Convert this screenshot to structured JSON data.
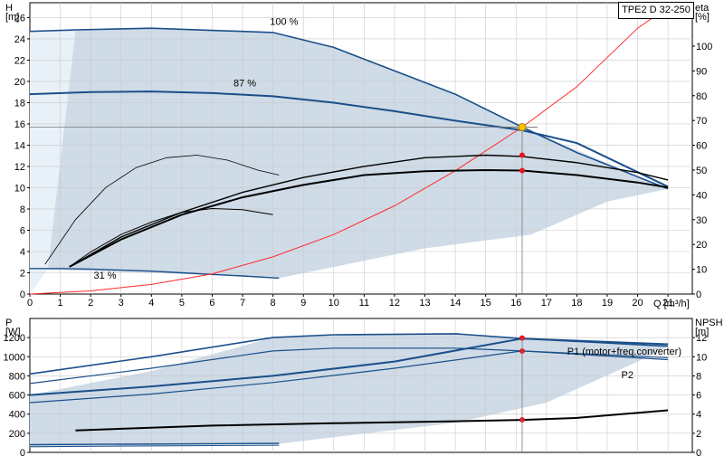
{
  "header": {
    "model": "TPE2 D 32-250"
  },
  "chart_data": [
    {
      "type": "line",
      "name": "head",
      "ylabel": "H",
      "yunit": "[m]",
      "y2label": "eta",
      "y2unit": "[%]",
      "xlabel": "Q",
      "xunit": "[m³/h]",
      "xlim": [
        0,
        21.8
      ],
      "ylim": [
        0,
        27.4
      ],
      "y2lim": [
        0,
        117.5
      ],
      "xticks": [
        "0",
        "1",
        "2",
        "3",
        "4",
        "5",
        "6",
        "7",
        "8",
        "9",
        "10",
        "11",
        "12",
        "13",
        "14",
        "15",
        "16",
        "17",
        "18",
        "19",
        "20",
        "21"
      ],
      "yticks": [
        "0",
        "2",
        "4",
        "6",
        "8",
        "10",
        "12",
        "14",
        "16",
        "18",
        "20",
        "22",
        "24",
        "26"
      ],
      "y2ticks": [
        "0",
        "10",
        "20",
        "30",
        "40",
        "50",
        "60",
        "70",
        "80",
        "90",
        "100"
      ],
      "annotations": [
        "100 %",
        "87 %",
        "31 %"
      ],
      "duty_point": {
        "q": 16.2,
        "h": 15.7
      },
      "series": [
        {
          "name": "100 %",
          "axis": "left",
          "x": [
            0,
            1.5,
            4,
            8,
            10,
            12,
            14,
            16.2,
            18,
            21
          ],
          "y": [
            24.7,
            24.85,
            25,
            24.6,
            23.2,
            21,
            18.8,
            15.7,
            13.3,
            9.9
          ]
        },
        {
          "name": "87 %",
          "axis": "left",
          "x": [
            0,
            2,
            4,
            6,
            8,
            10,
            12,
            14,
            16.2,
            18,
            21
          ],
          "y": [
            18.8,
            19,
            19.05,
            18.9,
            18.6,
            18,
            17.2,
            16.3,
            15.4,
            14.2,
            10.1
          ]
        },
        {
          "name": "31 %",
          "axis": "left",
          "x": [
            0,
            1,
            2,
            3,
            4,
            5,
            6,
            7,
            8.2
          ],
          "y": [
            2.4,
            2.4,
            2.35,
            2.25,
            2.15,
            2.0,
            1.85,
            1.7,
            1.5
          ]
        },
        {
          "name": "",
          "axis": "left",
          "x": [
            0,
            2,
            4,
            6,
            8,
            10,
            12,
            14,
            16.2,
            18,
            20,
            21
          ],
          "y": [
            0,
            0.3,
            0.9,
            1.9,
            3.5,
            5.6,
            8.3,
            11.6,
            15.7,
            19.5,
            25,
            27
          ]
        },
        {
          "name": "",
          "axis": "left",
          "x": [
            15.7,
            16.2,
            16.7
          ],
          "y": [
            15.7,
            15.7,
            15.7
          ]
        }
      ],
      "efficiency": [
        {
          "name": "",
          "x": [
            0.5,
            1.5,
            2.5,
            3.5,
            4.5,
            5.5,
            6.5,
            7.5,
            8.2
          ],
          "y": [
            12,
            30,
            43,
            51,
            55,
            56,
            54,
            50,
            48
          ]
        },
        {
          "name": "",
          "x": [
            1.3,
            3,
            5,
            7,
            9,
            11,
            13,
            15,
            16.2,
            18,
            20,
            21
          ],
          "y": [
            11,
            23,
            33,
            41,
            47,
            51.5,
            55,
            56,
            55.5,
            53,
            49,
            46
          ]
        },
        {
          "name": "",
          "x": [
            1.3,
            3,
            5,
            7,
            9,
            11,
            13,
            15,
            16.2,
            18,
            20,
            21
          ],
          "y": [
            11,
            22,
            32,
            39,
            44,
            48,
            49.5,
            50,
            49.8,
            48,
            45,
            43
          ]
        },
        {
          "name": "",
          "x": [
            1.3,
            2,
            3,
            4,
            5,
            6,
            7,
            8
          ],
          "y": [
            11,
            17,
            24,
            29,
            33,
            34.5,
            34,
            32
          ]
        }
      ],
      "marked_points": [
        {
          "q": 16.2,
          "eta": 56
        },
        {
          "q": 16.2,
          "eta": 49.8
        }
      ]
    },
    {
      "type": "line",
      "name": "power",
      "ylabel": "P",
      "yunit": "[W]",
      "y2label": "NPSH",
      "y2unit": "[m]",
      "xlim": [
        0,
        21.8
      ],
      "ylim": [
        0,
        1400
      ],
      "y2lim": [
        0,
        14
      ],
      "yticks": [
        "0",
        "200",
        "400",
        "600",
        "800",
        "1000",
        "1200"
      ],
      "y2ticks": [
        "0",
        "2",
        "4",
        "6",
        "8",
        "10",
        "12"
      ],
      "series": [
        {
          "name": "P1 (motor+freq.converter)",
          "x": [
            0,
            4,
            8,
            10,
            14,
            16.2,
            21
          ],
          "y": [
            820,
            1000,
            1200,
            1230,
            1240,
            1190,
            1110
          ]
        },
        {
          "name": "P2",
          "x": [
            0,
            4,
            8,
            10,
            14,
            16.2,
            21
          ],
          "y": [
            720,
            880,
            1060,
            1090,
            1090,
            1060,
            970
          ]
        },
        {
          "name": "",
          "x": [
            0,
            4,
            8,
            12,
            16.2,
            21
          ],
          "y": [
            600,
            690,
            800,
            950,
            1190,
            1130
          ]
        },
        {
          "name": "",
          "x": [
            0,
            4,
            8,
            12,
            16.2,
            21
          ],
          "y": [
            520,
            610,
            730,
            880,
            1060,
            990
          ]
        },
        {
          "name": "",
          "x": [
            0,
            8.2
          ],
          "y": [
            80,
            95
          ]
        },
        {
          "name": "",
          "x": [
            0,
            8.2
          ],
          "y": [
            60,
            75
          ]
        },
        {
          "name": "NPSH",
          "x": [
            1.5,
            6,
            10,
            14,
            16.2,
            18,
            21
          ],
          "y": [
            2.3,
            2.8,
            3.05,
            3.25,
            3.4,
            3.6,
            4.4
          ]
        }
      ],
      "marked_points": [
        {
          "q": 16.2,
          "p": 1195
        },
        {
          "q": 16.2,
          "p": 1060
        },
        {
          "q": 16.2,
          "npsh": 3.4
        }
      ],
      "labels": [
        "P1 (motor+freq.converter)",
        "P2"
      ]
    }
  ]
}
